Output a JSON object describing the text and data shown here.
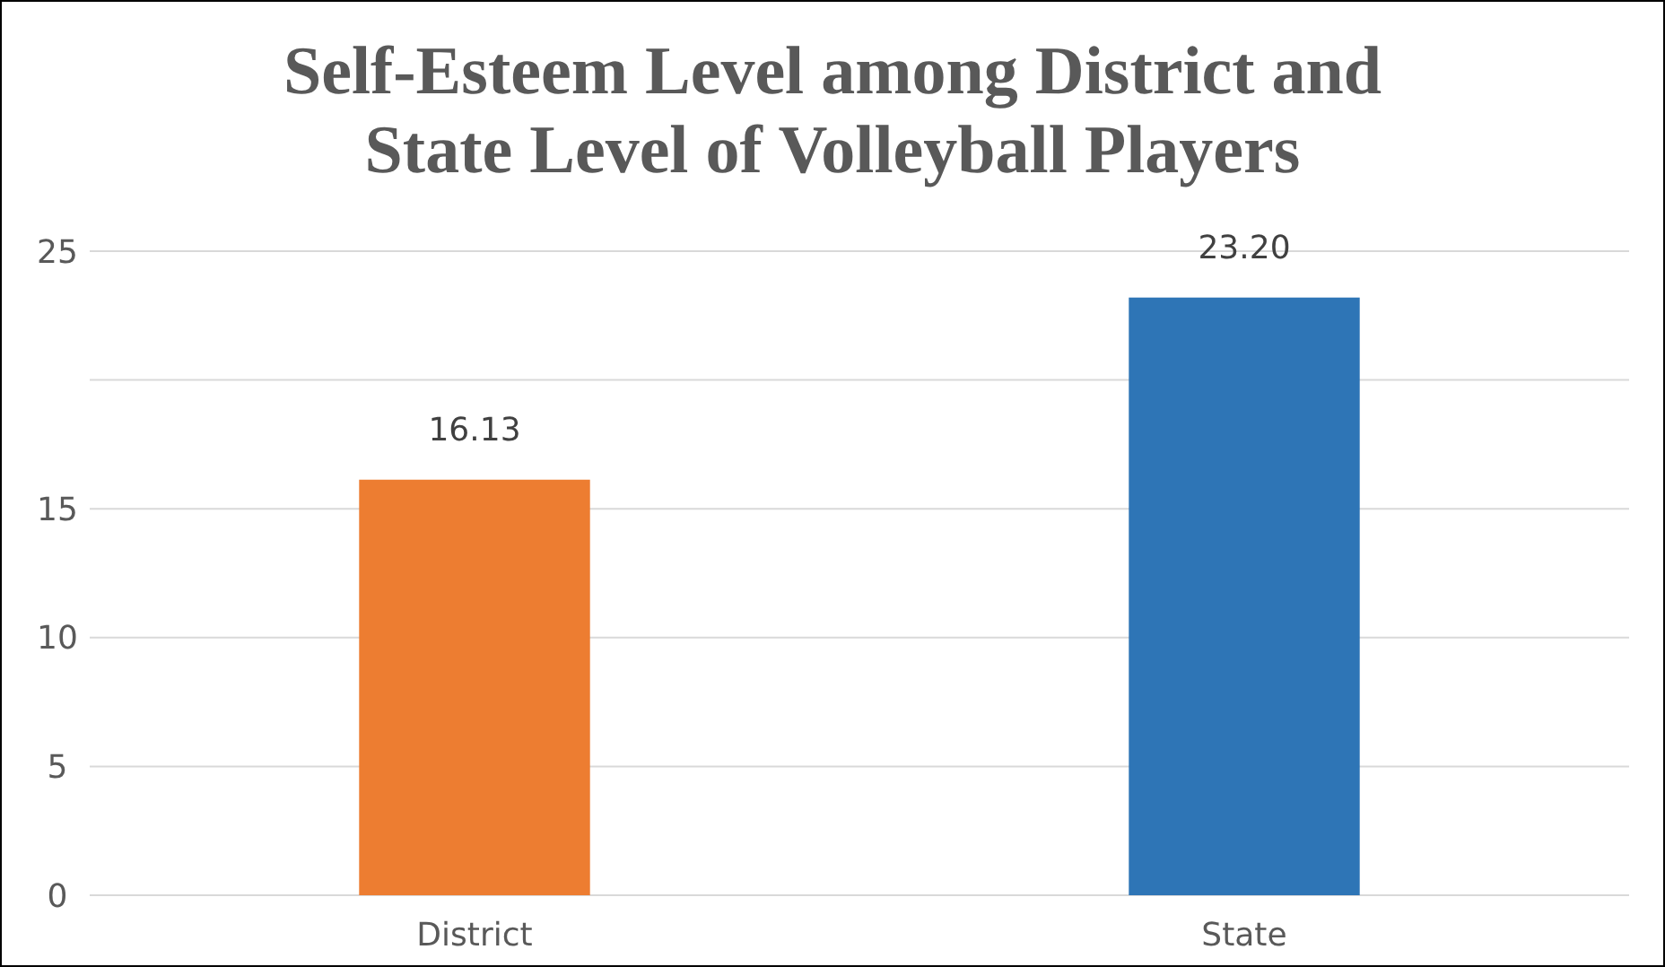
{
  "chart_data": {
    "type": "bar",
    "title": "Self-Esteem Level among District and State Level of Volleyball Players",
    "categories": [
      "District",
      "State"
    ],
    "values": [
      16.13,
      23.2
    ],
    "colors": [
      "#ed7d31",
      "#2e75b6"
    ],
    "value_labels": [
      "16.13",
      "23.20"
    ],
    "ylim": [
      0,
      25
    ],
    "yticks": [
      0,
      5,
      10,
      15,
      {
        "value": 20,
        "label": null
      },
      25
    ],
    "grid": "y"
  }
}
